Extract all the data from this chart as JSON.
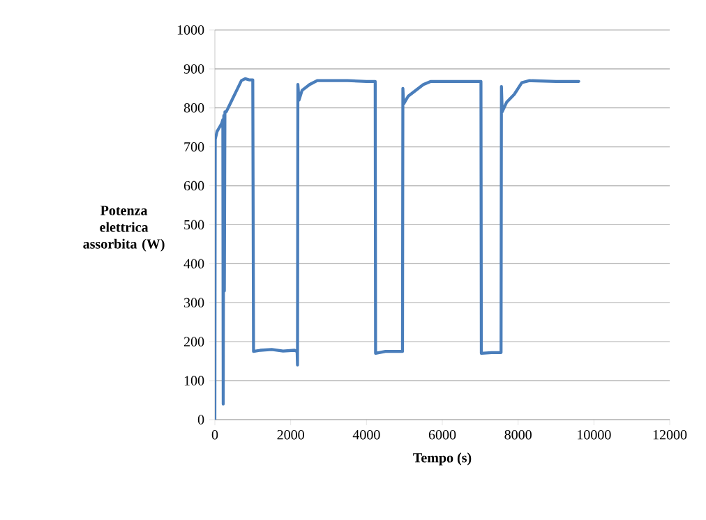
{
  "chart_data": {
    "type": "line",
    "xlabel": "Tempo (s)",
    "ylabel": "Potenza elettrica assorbita (W)",
    "xlim": [
      0,
      12000
    ],
    "xticks": [
      0,
      2000,
      4000,
      6000,
      8000,
      10000,
      12000
    ],
    "ylim": [
      0,
      1000
    ],
    "yticks": [
      0,
      100,
      200,
      300,
      400,
      500,
      600,
      700,
      800,
      900,
      1000
    ],
    "grid": "y",
    "marker": "none",
    "line_style": "solid",
    "series": [
      {
        "color": "#4a7ebb",
        "x": [
          0,
          10,
          60,
          120,
          180,
          210,
          220,
          235,
          250,
          265,
          300,
          400,
          500,
          600,
          700,
          800,
          900,
          1000,
          1020,
          1200,
          1500,
          1800,
          2100,
          2170,
          2180,
          2190,
          2220,
          2300,
          2500,
          2700,
          3000,
          3500,
          4000,
          4230,
          4240,
          4500,
          4950,
          4960,
          4980,
          5100,
          5300,
          5500,
          5700,
          6000,
          6500,
          7020,
          7030,
          7300,
          7550,
          7560,
          7580,
          7700,
          7900,
          8100,
          8300,
          9000,
          9600
        ],
        "values": [
          0,
          720,
          740,
          750,
          760,
          770,
          40,
          780,
          330,
          790,
          790,
          810,
          830,
          850,
          870,
          875,
          872,
          872,
          175,
          178,
          180,
          176,
          178,
          175,
          140,
          860,
          820,
          845,
          860,
          870,
          870,
          870,
          868,
          868,
          170,
          175,
          175,
          850,
          810,
          830,
          845,
          860,
          868,
          868,
          868,
          868,
          170,
          172,
          172,
          855,
          790,
          815,
          835,
          865,
          870,
          868,
          868
        ]
      }
    ]
  }
}
